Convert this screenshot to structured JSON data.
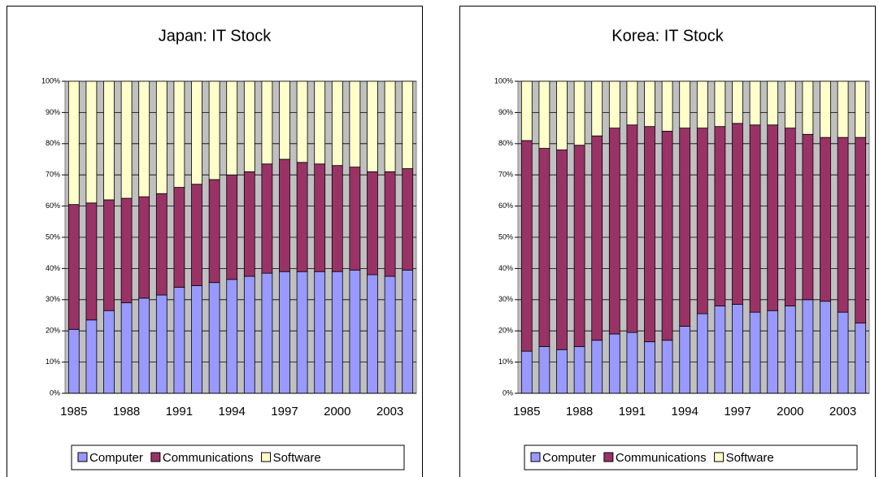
{
  "chart_data": [
    {
      "type": "bar",
      "stacked": true,
      "title": "Japan: IT Stock",
      "categories": [
        "1985",
        null,
        null,
        "1988",
        null,
        null,
        "1991",
        null,
        null,
        "1994",
        null,
        null,
        "1997",
        null,
        null,
        "2000",
        null,
        null,
        "2003",
        null
      ],
      "series": [
        {
          "name": "Computer",
          "color": "#9999ff",
          "values": [
            20.5,
            23.5,
            26.5,
            29,
            30.5,
            31.5,
            34,
            34.5,
            35.5,
            36.5,
            37.5,
            38.5,
            39,
            39,
            39,
            39,
            39.5,
            38,
            37.5,
            39.5
          ]
        },
        {
          "name": "Communications",
          "color": "#993366",
          "values": [
            40,
            37.5,
            35.5,
            33.5,
            32.5,
            32.5,
            32,
            32.5,
            33,
            33.5,
            33.5,
            35,
            36,
            35,
            34.5,
            34,
            33,
            33,
            33.5,
            32.5
          ]
        },
        {
          "name": "Software",
          "color": "#ffffcc",
          "values": [
            39.5,
            39,
            38,
            37.5,
            37,
            36,
            34,
            33,
            31.5,
            30,
            29,
            26.5,
            25,
            26,
            26.5,
            27,
            27.5,
            29,
            29,
            28
          ]
        }
      ],
      "ylim": [
        0,
        100
      ],
      "yticks": [
        {
          "value": 0,
          "label": "0%"
        },
        {
          "value": 10,
          "label": "10%"
        },
        {
          "value": 20,
          "label": "20%"
        },
        {
          "value": 30,
          "label": "30%"
        },
        {
          "value": 40,
          "label": "40%"
        },
        {
          "value": 50,
          "label": "50%"
        },
        {
          "value": 60,
          "label": "60%"
        },
        {
          "value": 70,
          "label": "70%"
        },
        {
          "value": 80,
          "label": "80%"
        },
        {
          "value": 90,
          "label": "90%"
        },
        {
          "value": 100,
          "label": "100%"
        }
      ],
      "grid": true,
      "legend": "bottom"
    },
    {
      "type": "bar",
      "stacked": true,
      "title": "Korea: IT Stock",
      "categories": [
        "1985",
        null,
        null,
        "1988",
        null,
        null,
        "1991",
        null,
        null,
        "1994",
        null,
        null,
        "1997",
        null,
        null,
        "2000",
        null,
        null,
        "2003",
        null
      ],
      "series": [
        {
          "name": "Computer",
          "color": "#9999ff",
          "values": [
            13.5,
            15,
            14,
            15,
            17,
            19,
            19.5,
            16.5,
            17,
            21.5,
            25.5,
            28,
            28.5,
            26,
            26.5,
            28,
            30,
            29.5,
            26,
            22.5
          ]
        },
        {
          "name": "Communications",
          "color": "#993366",
          "values": [
            67.5,
            63.5,
            64,
            64.5,
            65.5,
            66,
            66.5,
            69,
            67,
            63.5,
            59.5,
            57.5,
            58,
            60,
            59.5,
            57,
            53,
            52.5,
            56,
            59.5
          ]
        },
        {
          "name": "Software",
          "color": "#ffffcc",
          "values": [
            19,
            21.5,
            22,
            20.5,
            17.5,
            15,
            14,
            14.5,
            16,
            15,
            15,
            14.5,
            13.5,
            14,
            14,
            15,
            17,
            18,
            18,
            18
          ]
        }
      ],
      "ylim": [
        0,
        100
      ],
      "yticks": [
        {
          "value": 0,
          "label": "0%"
        },
        {
          "value": 10,
          "label": "10%"
        },
        {
          "value": 20,
          "label": "20%"
        },
        {
          "value": 30,
          "label": "30%"
        },
        {
          "value": 40,
          "label": "40%"
        },
        {
          "value": 50,
          "label": "50%"
        },
        {
          "value": 60,
          "label": "60%"
        },
        {
          "value": 70,
          "label": "70%"
        },
        {
          "value": 80,
          "label": "80%"
        },
        {
          "value": 90,
          "label": "90%"
        },
        {
          "value": 100,
          "label": "100%"
        }
      ],
      "grid": true,
      "legend": "bottom"
    }
  ]
}
